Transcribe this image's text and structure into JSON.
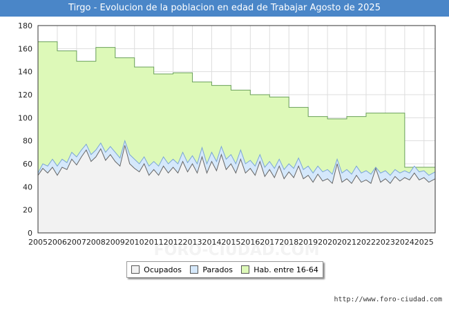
{
  "chart_data": {
    "type": "area",
    "title": "Tirgo - Evolucion de la poblacion en edad de Trabajar Agosto de 2025",
    "xlabel": "",
    "ylabel": "",
    "x_range": [
      2005.0,
      2025.58
    ],
    "ylim": [
      0,
      180
    ],
    "yticks": [
      0,
      20,
      40,
      60,
      80,
      100,
      120,
      140,
      160,
      180
    ],
    "xticks": [
      "2005",
      "2006",
      "2007",
      "2008",
      "2009",
      "2010",
      "2011",
      "2012",
      "2013",
      "2014",
      "2015",
      "2016",
      "2017",
      "2018",
      "2019",
      "2020",
      "2021",
      "2022",
      "2023",
      "2024",
      "2025"
    ],
    "grid": true,
    "legend_position": "bottom-center",
    "colors": {
      "hab": "#ddf9b8",
      "hab_line": "#6aa05a",
      "parados": "#d5e8fb",
      "parados_line": "#7aa6d6",
      "ocupados": "#f2f2f2",
      "ocupados_line": "#666666"
    },
    "series": [
      {
        "name": "Hab. entre 16-64",
        "step": true,
        "points": [
          [
            2005.0,
            166
          ],
          [
            2006.0,
            158
          ],
          [
            2007.0,
            149
          ],
          [
            2008.0,
            161
          ],
          [
            2009.0,
            152
          ],
          [
            2010.0,
            144
          ],
          [
            2011.0,
            138
          ],
          [
            2012.0,
            139
          ],
          [
            2013.0,
            131
          ],
          [
            2014.0,
            128
          ],
          [
            2015.0,
            124
          ],
          [
            2016.0,
            120
          ],
          [
            2017.0,
            118
          ],
          [
            2018.0,
            109
          ],
          [
            2019.0,
            101
          ],
          [
            2020.0,
            99
          ],
          [
            2021.0,
            101
          ],
          [
            2022.0,
            104
          ],
          [
            2024.0,
            57
          ]
        ]
      },
      {
        "name": "Parados",
        "step": false,
        "points": [
          [
            2005.0,
            52
          ],
          [
            2005.25,
            60
          ],
          [
            2005.5,
            58
          ],
          [
            2005.75,
            64
          ],
          [
            2006.0,
            58
          ],
          [
            2006.25,
            64
          ],
          [
            2006.5,
            61
          ],
          [
            2006.75,
            70
          ],
          [
            2007.0,
            66
          ],
          [
            2007.25,
            72
          ],
          [
            2007.5,
            77
          ],
          [
            2007.75,
            68
          ],
          [
            2008.0,
            72
          ],
          [
            2008.25,
            78
          ],
          [
            2008.5,
            70
          ],
          [
            2008.75,
            75
          ],
          [
            2009.0,
            70
          ],
          [
            2009.25,
            65
          ],
          [
            2009.5,
            80
          ],
          [
            2009.75,
            68
          ],
          [
            2010.0,
            64
          ],
          [
            2010.25,
            60
          ],
          [
            2010.5,
            66
          ],
          [
            2010.75,
            58
          ],
          [
            2011.0,
            62
          ],
          [
            2011.25,
            58
          ],
          [
            2011.5,
            66
          ],
          [
            2011.75,
            60
          ],
          [
            2012.0,
            64
          ],
          [
            2012.25,
            60
          ],
          [
            2012.5,
            70
          ],
          [
            2012.75,
            61
          ],
          [
            2013.0,
            67
          ],
          [
            2013.25,
            60
          ],
          [
            2013.5,
            74
          ],
          [
            2013.75,
            60
          ],
          [
            2014.0,
            70
          ],
          [
            2014.25,
            62
          ],
          [
            2014.5,
            75
          ],
          [
            2014.75,
            64
          ],
          [
            2015.0,
            68
          ],
          [
            2015.25,
            60
          ],
          [
            2015.5,
            72
          ],
          [
            2015.75,
            60
          ],
          [
            2016.0,
            63
          ],
          [
            2016.25,
            58
          ],
          [
            2016.5,
            68
          ],
          [
            2016.75,
            57
          ],
          [
            2017.0,
            62
          ],
          [
            2017.25,
            56
          ],
          [
            2017.5,
            64
          ],
          [
            2017.75,
            55
          ],
          [
            2018.0,
            60
          ],
          [
            2018.25,
            56
          ],
          [
            2018.5,
            65
          ],
          [
            2018.75,
            55
          ],
          [
            2019.0,
            58
          ],
          [
            2019.25,
            52
          ],
          [
            2019.5,
            58
          ],
          [
            2019.75,
            53
          ],
          [
            2020.0,
            55
          ],
          [
            2020.25,
            51
          ],
          [
            2020.5,
            64
          ],
          [
            2020.75,
            52
          ],
          [
            2021.0,
            55
          ],
          [
            2021.25,
            51
          ],
          [
            2021.5,
            58
          ],
          [
            2021.75,
            52
          ],
          [
            2022.0,
            54
          ],
          [
            2022.25,
            51
          ],
          [
            2022.5,
            57
          ],
          [
            2022.75,
            52
          ],
          [
            2023.0,
            54
          ],
          [
            2023.25,
            50
          ],
          [
            2023.5,
            55
          ],
          [
            2023.75,
            52
          ],
          [
            2024.0,
            54
          ],
          [
            2024.25,
            52
          ],
          [
            2024.5,
            58
          ],
          [
            2024.75,
            53
          ],
          [
            2025.0,
            54
          ],
          [
            2025.25,
            50
          ],
          [
            2025.58,
            53
          ]
        ]
      },
      {
        "name": "Ocupados",
        "step": false,
        "points": [
          [
            2005.0,
            50
          ],
          [
            2005.25,
            56
          ],
          [
            2005.5,
            52
          ],
          [
            2005.75,
            57
          ],
          [
            2006.0,
            50
          ],
          [
            2006.25,
            57
          ],
          [
            2006.5,
            55
          ],
          [
            2006.75,
            64
          ],
          [
            2007.0,
            59
          ],
          [
            2007.25,
            66
          ],
          [
            2007.5,
            72
          ],
          [
            2007.75,
            62
          ],
          [
            2008.0,
            66
          ],
          [
            2008.25,
            73
          ],
          [
            2008.5,
            63
          ],
          [
            2008.75,
            68
          ],
          [
            2009.0,
            62
          ],
          [
            2009.25,
            58
          ],
          [
            2009.5,
            76
          ],
          [
            2009.75,
            60
          ],
          [
            2010.0,
            56
          ],
          [
            2010.25,
            53
          ],
          [
            2010.5,
            60
          ],
          [
            2010.75,
            50
          ],
          [
            2011.0,
            55
          ],
          [
            2011.25,
            50
          ],
          [
            2011.5,
            58
          ],
          [
            2011.75,
            52
          ],
          [
            2012.0,
            57
          ],
          [
            2012.25,
            52
          ],
          [
            2012.5,
            62
          ],
          [
            2012.75,
            53
          ],
          [
            2013.0,
            60
          ],
          [
            2013.25,
            52
          ],
          [
            2013.5,
            66
          ],
          [
            2013.75,
            52
          ],
          [
            2014.0,
            62
          ],
          [
            2014.25,
            54
          ],
          [
            2014.5,
            68
          ],
          [
            2014.75,
            55
          ],
          [
            2015.0,
            60
          ],
          [
            2015.25,
            52
          ],
          [
            2015.5,
            64
          ],
          [
            2015.75,
            52
          ],
          [
            2016.0,
            56
          ],
          [
            2016.25,
            50
          ],
          [
            2016.5,
            62
          ],
          [
            2016.75,
            49
          ],
          [
            2017.0,
            55
          ],
          [
            2017.25,
            48
          ],
          [
            2017.5,
            58
          ],
          [
            2017.75,
            47
          ],
          [
            2018.0,
            53
          ],
          [
            2018.25,
            48
          ],
          [
            2018.5,
            58
          ],
          [
            2018.75,
            47
          ],
          [
            2019.0,
            50
          ],
          [
            2019.25,
            44
          ],
          [
            2019.5,
            51
          ],
          [
            2019.75,
            45
          ],
          [
            2020.0,
            47
          ],
          [
            2020.25,
            43
          ],
          [
            2020.5,
            60
          ],
          [
            2020.75,
            44
          ],
          [
            2021.0,
            47
          ],
          [
            2021.25,
            43
          ],
          [
            2021.5,
            50
          ],
          [
            2021.75,
            44
          ],
          [
            2022.0,
            46
          ],
          [
            2022.25,
            43
          ],
          [
            2022.5,
            56
          ],
          [
            2022.75,
            44
          ],
          [
            2023.0,
            47
          ],
          [
            2023.25,
            43
          ],
          [
            2023.5,
            49
          ],
          [
            2023.75,
            45
          ],
          [
            2024.0,
            48
          ],
          [
            2024.25,
            46
          ],
          [
            2024.5,
            52
          ],
          [
            2024.75,
            46
          ],
          [
            2025.0,
            48
          ],
          [
            2025.25,
            44
          ],
          [
            2025.58,
            47
          ]
        ]
      }
    ],
    "legend": [
      "Ocupados",
      "Parados",
      "Hab. entre 16-64"
    ],
    "watermark": "FORO-CIUDAD.COM"
  },
  "credit": "http://www.foro-ciudad.com"
}
